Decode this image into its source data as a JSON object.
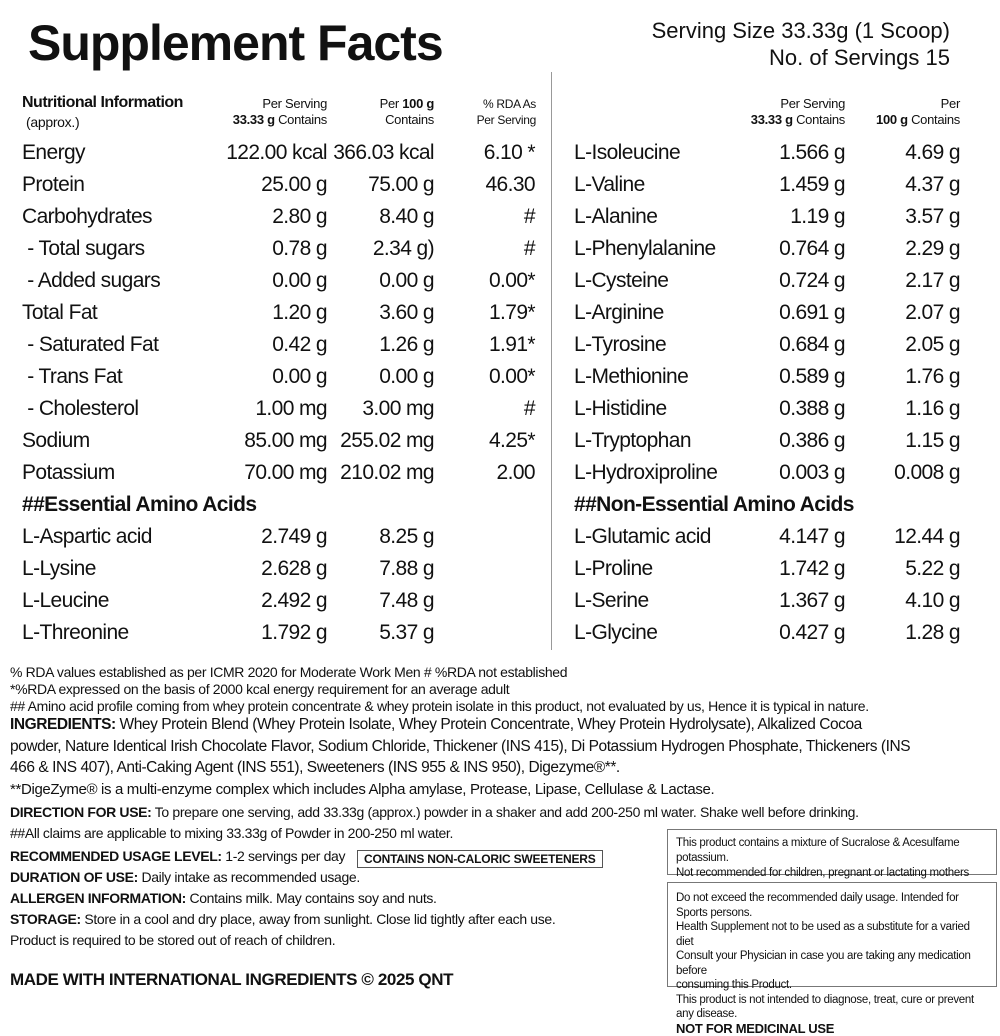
{
  "title": "Supplement Facts",
  "serving_size": "Serving Size  33.33g (1 Scoop)",
  "servings": "No. of Servings 15",
  "left_header": {
    "label": "Nutritional Information",
    "sublabel": "(approx.)",
    "col1_a": "Per Serving",
    "col1_b": "33.33 g",
    "col1_c": "Contains",
    "col2_a": "Per",
    "col2_b": "100 g",
    "col2_c": "Contains",
    "col3_a": "% RDA As",
    "col3_b": "Per Serving"
  },
  "right_header": {
    "col1_a": "Per Serving",
    "col1_b": "33.33 g",
    "col1_c": "Contains",
    "col2_a": "Per",
    "col2_b": "100 g",
    "col2_c": "Contains"
  },
  "left_rows": [
    {
      "name": "Energy",
      "serving": "122.00 kcal",
      "per100": "366.03 kcal",
      "rda": "6.10 *"
    },
    {
      "name": "Protein",
      "serving": "25.00 g",
      "per100": "75.00 g",
      "rda": "46.30"
    },
    {
      "name": "Carbohydrates",
      "serving": "2.80 g",
      "per100": "8.40 g",
      "rda": "#"
    },
    {
      "name": " - Total sugars",
      "serving": "0.78 g",
      "per100": "2.34 g)",
      "rda": "#"
    },
    {
      "name": " - Added sugars",
      "serving": "0.00 g",
      "per100": "0.00 g",
      "rda": "0.00*"
    },
    {
      "name": "Total Fat",
      "serving": "1.20 g",
      "per100": "3.60 g",
      "rda": "1.79*"
    },
    {
      "name": " - Saturated Fat",
      "serving": "0.42 g",
      "per100": "1.26 g",
      "rda": "1.91*"
    },
    {
      "name": " - Trans Fat",
      "serving": "0.00 g",
      "per100": "0.00 g",
      "rda": "0.00*"
    },
    {
      "name": " - Cholesterol",
      "serving": "1.00 mg",
      "per100": "3.00 mg",
      "rda": "#"
    },
    {
      "name": "Sodium",
      "serving": "85.00 mg",
      "per100": "255.02 mg",
      "rda": "4.25*"
    },
    {
      "name": "Potassium",
      "serving": "70.00 mg",
      "per100": "210.02 mg",
      "rda": "2.00"
    },
    {
      "section": "##Essential Amino Acids"
    },
    {
      "name": "L-Aspartic acid",
      "serving": "2.749 g",
      "per100": "8.25 g"
    },
    {
      "name": "L-Lysine",
      "serving": "2.628 g",
      "per100": "7.88 g"
    },
    {
      "name": "L-Leucine",
      "serving": "2.492 g",
      "per100": "7.48 g"
    },
    {
      "name": "L-Threonine",
      "serving": "1.792 g",
      "per100": "5.37 g"
    }
  ],
  "right_rows": [
    {
      "name": "L-Isoleucine",
      "serving": "1.566 g",
      "per100": "4.69 g"
    },
    {
      "name": "L-Valine",
      "serving": "1.459 g",
      "per100": "4.37 g"
    },
    {
      "name": "L-Alanine",
      "serving": "1.19 g",
      "per100": "3.57 g"
    },
    {
      "name": "L-Phenylalanine",
      "serving": "0.764 g",
      "per100": "2.29 g"
    },
    {
      "name": "L-Cysteine",
      "serving": "0.724 g",
      "per100": "2.17 g"
    },
    {
      "name": "L-Arginine",
      "serving": "0.691 g",
      "per100": "2.07 g"
    },
    {
      "name": "L-Tyrosine",
      "serving": "0.684 g",
      "per100": "2.05 g"
    },
    {
      "name": "L-Methionine",
      "serving": "0.589 g",
      "per100": "1.76 g"
    },
    {
      "name": "L-Histidine",
      "serving": "0.388 g",
      "per100": "1.16 g"
    },
    {
      "name": "L-Tryptophan",
      "serving": "0.386 g",
      "per100": "1.15 g"
    },
    {
      "name": "L-Hydroxiproline",
      "serving": "0.003 g",
      "per100": "0.008 g"
    },
    {
      "section": "##Non-Essential Amino Acids"
    },
    {
      "name": "L-Glutamic acid",
      "serving": "4.147 g",
      "per100": "12.44 g"
    },
    {
      "name": "L-Proline",
      "serving": "1.742 g",
      "per100": "5.22 g"
    },
    {
      "name": "L-Serine",
      "serving": "1.367 g",
      "per100": "4.10 g"
    },
    {
      "name": "L-Glycine",
      "serving": "0.427 g",
      "per100": "1.28 g"
    }
  ],
  "footnotes": {
    "rda": "% RDA values established as per ICMR 2020 for Moderate Work Men  # %RDA not established",
    "energy": "*%RDA expressed on the basis of 2000 kcal energy requirement for an average adult",
    "amino": "## Amino acid profile coming from whey protein concentrate & whey protein isolate in this product, not evaluated by us, Hence it is typical in nature."
  },
  "ingredients": {
    "label": "INGREDIENTS:",
    "line1": " Whey Protein Blend (Whey Protein Isolate, Whey Protein Concentrate,  Whey Protein Hydrolysate), Alkalized Cocoa",
    "line2": "powder, Nature Identical Irish Chocolate Flavor, Sodium Chloride, Thickener (INS 415), Di Potassium Hydrogen Phosphate, Thickeners (INS",
    "line3": "466 & INS 407), Anti-Caking Agent (INS 551), Sweeteners (INS 955 & INS 950), Digezyme®**.",
    "digezyme": "**DigeZyme® is a multi-enzyme complex which includes Alpha amylase, Protease, Lipase, Cellulase & Lactase."
  },
  "direction": {
    "label": "DIRECTION FOR USE:",
    "text": " To prepare one serving, add 33.33g (approx.) powder in a shaker and add 200-250 ml water. Shake well before drinking."
  },
  "claims": "##All claims are applicable to mixing 33.33g of Powder in 200-250 ml water.",
  "usage": {
    "label": "RECOMMENDED USAGE LEVEL:",
    "text": " 1-2 servings per day"
  },
  "badge": "CONTAINS NON-CALORIC SWEETENERS",
  "duration": {
    "label": "DURATION OF USE:",
    "text": " Daily intake as recommended usage."
  },
  "allergen": {
    "label": "ALLERGEN INFORMATION:",
    "text": " Contains milk. May contains soy and nuts."
  },
  "storage": {
    "label": "STORAGE:",
    "text": " Store in a cool and dry place, away from sunlight. Close lid tightly after each use."
  },
  "children": "Product is required to be stored out of reach of children.",
  "footer": "MADE WITH INTERNATIONAL INGREDIENTS © 2025 QNT",
  "box1": [
    "This product contains a mixture of Sucralose & Acesulfame potassium.",
    "Not recommended for children, pregnant or lactating mothers"
  ],
  "box2": [
    "Do not exceed the recommended daily usage.  Intended for Sports persons.",
    "Health Supplement not to be used as a substitute for a varied diet",
    "Consult your Physician in case you are taking any medication before",
    "consuming this Product.",
    "This product is not intended to diagnose, treat, cure or prevent any disease."
  ],
  "box2_bold": "NOT FOR MEDICINAL USE"
}
